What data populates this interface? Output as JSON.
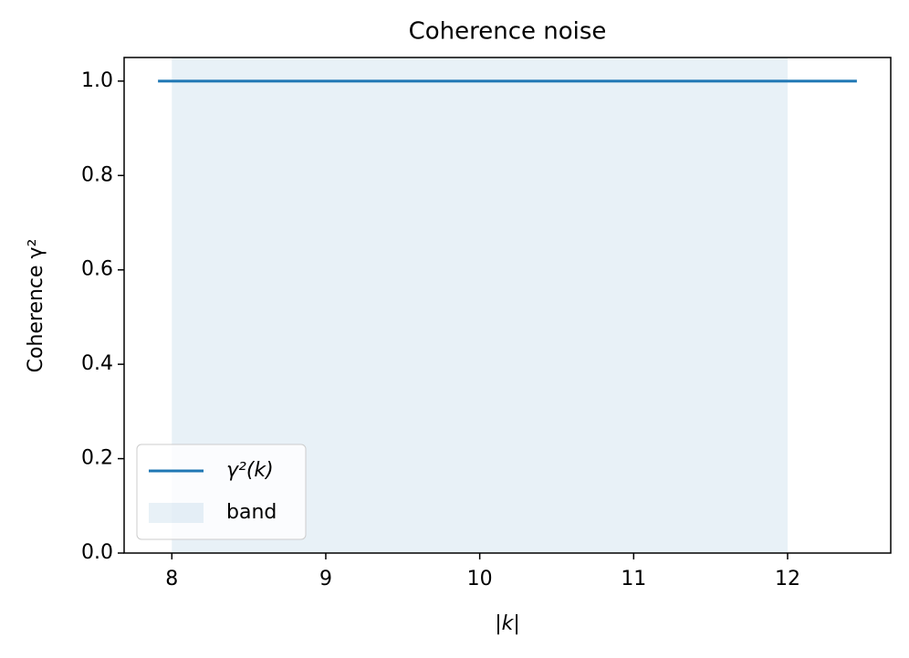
{
  "chart_data": {
    "type": "line",
    "title": "Coherence noise",
    "xlabel": "|k|",
    "ylabel": "Coherence γ²",
    "x": [
      7.91,
      12.45
    ],
    "series": [
      {
        "name": "γ²(k)",
        "color": "#1f77b4",
        "values": [
          1.0,
          1.0
        ]
      }
    ],
    "band": {
      "name": "band",
      "range": [
        8,
        12
      ],
      "color": "#1f77b4"
    },
    "xlim": [
      7.69,
      12.67
    ],
    "xticks": [
      8,
      9,
      10,
      11,
      12
    ],
    "ylim": [
      0,
      1.05
    ],
    "yticks": [
      {
        "value": 0,
        "label": "0.0"
      },
      {
        "value": 0.2,
        "label": "0.2"
      },
      {
        "value": 0.4,
        "label": "0.4"
      },
      {
        "value": 0.6,
        "label": "0.6"
      },
      {
        "value": 0.8,
        "label": "0.8"
      },
      {
        "value": 1.0,
        "label": "1.0"
      }
    ],
    "legend": "lower left"
  }
}
